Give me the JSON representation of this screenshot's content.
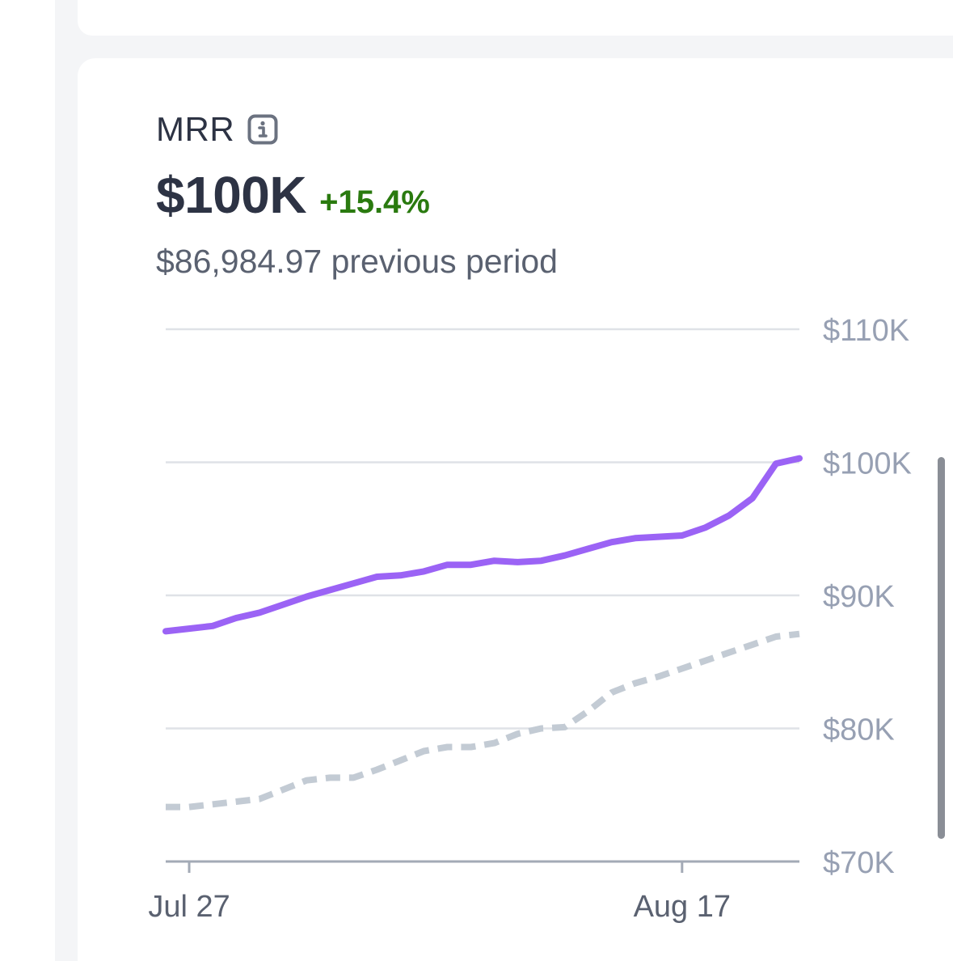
{
  "metric": {
    "title": "MRR",
    "value": "$100K",
    "change": "+15.4%",
    "previous": "$86,984.97 previous period"
  },
  "colors": {
    "current_series": "#9b63f5",
    "previous_series": "#c3cbd4",
    "positive_change": "#2a7a0f",
    "gridline": "#dfe2e7",
    "axis_text": "#97a0b3"
  },
  "icons": {
    "info": "info-icon"
  },
  "chart_data": {
    "type": "line",
    "x_ticks": [
      "Jul 27",
      "Aug 17"
    ],
    "y_ticks": [
      "$110K",
      "$100K",
      "$90K",
      "$80K",
      "$70K"
    ],
    "ylim": [
      70000,
      110000
    ],
    "y_axis_position": "right",
    "grid": true,
    "series": [
      {
        "values": [
          87300,
          87500,
          87700,
          88300,
          88700,
          89300,
          89900,
          90400,
          90900,
          91400,
          91500,
          91800,
          92300,
          92300,
          92600,
          92500,
          92600,
          93000,
          93500,
          94000,
          94300,
          94400,
          94500,
          95100,
          96000,
          97300,
          99900,
          100300
        ]
      },
      {
        "style": "dashed",
        "values": [
          74100,
          74100,
          74300,
          74500,
          74700,
          75400,
          76100,
          76300,
          76300,
          76900,
          77600,
          78300,
          78600,
          78600,
          78900,
          79600,
          80000,
          80100,
          81300,
          82700,
          83400,
          83900,
          84500,
          85100,
          85700,
          86300,
          86900,
          87100
        ]
      }
    ]
  }
}
